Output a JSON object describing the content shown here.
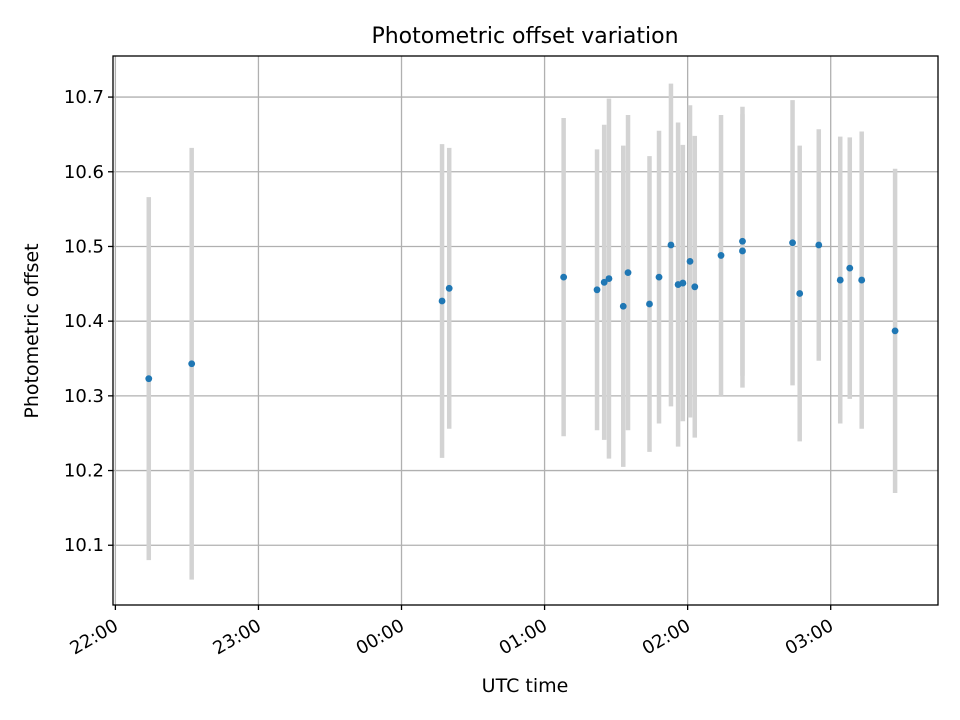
{
  "chart_data": {
    "type": "scatter",
    "title": "Photometric offset variation",
    "xlabel": "UTC time",
    "ylabel": "Photometric offset",
    "x_tick_labels": [
      "22:00",
      "23:00",
      "00:00",
      "01:00",
      "02:00",
      "03:00"
    ],
    "y_tick_labels": [
      "10.1",
      "10.2",
      "10.3",
      "10.4",
      "10.5",
      "10.6",
      "10.7"
    ],
    "xlim": [
      "21:59",
      "03:45"
    ],
    "ylim": [
      10.02,
      10.755
    ],
    "grid": true,
    "colors": {
      "points": "#1f77b4",
      "error_bars": "#d3d3d3",
      "grid": "#b0b0b0"
    },
    "points": [
      {
        "x": "22:14",
        "y": 10.323,
        "err": 0.243
      },
      {
        "x": "22:32",
        "y": 10.343,
        "err": 0.289
      },
      {
        "x": "00:17",
        "y": 10.427,
        "err": 0.21
      },
      {
        "x": "00:20",
        "y": 10.444,
        "err": 0.188
      },
      {
        "x": "01:08",
        "y": 10.459,
        "err": 0.213
      },
      {
        "x": "01:22",
        "y": 10.442,
        "err": 0.188
      },
      {
        "x": "01:25",
        "y": 10.452,
        "err": 0.211
      },
      {
        "x": "01:27",
        "y": 10.457,
        "err": 0.241
      },
      {
        "x": "01:33",
        "y": 10.42,
        "err": 0.215
      },
      {
        "x": "01:35",
        "y": 10.465,
        "err": 0.211
      },
      {
        "x": "01:44",
        "y": 10.423,
        "err": 0.198
      },
      {
        "x": "01:48",
        "y": 10.459,
        "err": 0.196
      },
      {
        "x": "01:53",
        "y": 10.502,
        "err": 0.216
      },
      {
        "x": "01:56",
        "y": 10.449,
        "err": 0.217
      },
      {
        "x": "01:58",
        "y": 10.451,
        "err": 0.185
      },
      {
        "x": "02:01",
        "y": 10.48,
        "err": 0.209
      },
      {
        "x": "02:03",
        "y": 10.446,
        "err": 0.202
      },
      {
        "x": "02:14",
        "y": 10.488,
        "err": 0.188
      },
      {
        "x": "02:23",
        "y": 10.494,
        "err": 0.183
      },
      {
        "x": "02:23",
        "y": 10.507,
        "err": 0.18
      },
      {
        "x": "02:44",
        "y": 10.505,
        "err": 0.191
      },
      {
        "x": "02:47",
        "y": 10.437,
        "err": 0.198
      },
      {
        "x": "02:55",
        "y": 10.502,
        "err": 0.155
      },
      {
        "x": "03:04",
        "y": 10.455,
        "err": 0.192
      },
      {
        "x": "03:08",
        "y": 10.471,
        "err": 0.175
      },
      {
        "x": "03:13",
        "y": 10.455,
        "err": 0.199
      },
      {
        "x": "03:27",
        "y": 10.387,
        "err": 0.217
      }
    ]
  }
}
